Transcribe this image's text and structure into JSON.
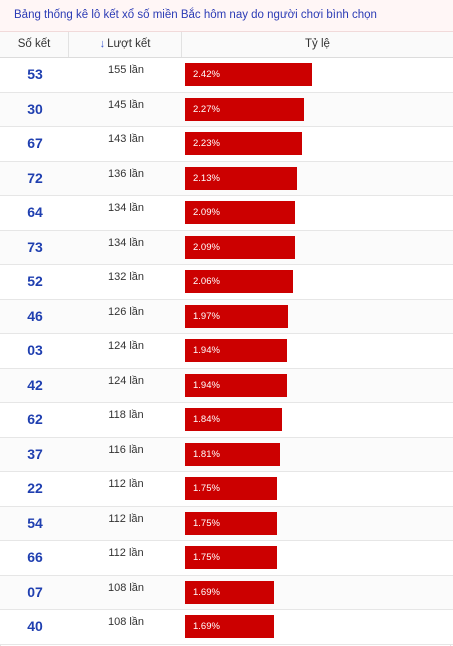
{
  "caption": "Bảng thống kê lô kết xổ số miền Bắc hôm nay do người chơi bình chọn",
  "header": {
    "col_number": "Số kết",
    "col_count": "Lượt kết",
    "col_ratio": "Tỷ lệ",
    "sort_icon": "arrow-down-icon"
  },
  "colors": {
    "accent_blue": "#1f3fb0",
    "bar_red": "#cc0000"
  },
  "rows": [
    {
      "number": "53",
      "count": "155 lần",
      "ratio": "2.42%",
      "value": 2.42
    },
    {
      "number": "30",
      "count": "145 lần",
      "ratio": "2.27%",
      "value": 2.27
    },
    {
      "number": "67",
      "count": "143 lần",
      "ratio": "2.23%",
      "value": 2.23
    },
    {
      "number": "72",
      "count": "136 lần",
      "ratio": "2.13%",
      "value": 2.13
    },
    {
      "number": "64",
      "count": "134 lần",
      "ratio": "2.09%",
      "value": 2.09
    },
    {
      "number": "73",
      "count": "134 lần",
      "ratio": "2.09%",
      "value": 2.09
    },
    {
      "number": "52",
      "count": "132 lần",
      "ratio": "2.06%",
      "value": 2.06
    },
    {
      "number": "46",
      "count": "126 lần",
      "ratio": "1.97%",
      "value": 1.97
    },
    {
      "number": "03",
      "count": "124 lần",
      "ratio": "1.94%",
      "value": 1.94
    },
    {
      "number": "42",
      "count": "124 lần",
      "ratio": "1.94%",
      "value": 1.94
    },
    {
      "number": "62",
      "count": "118 lần",
      "ratio": "1.84%",
      "value": 1.84
    },
    {
      "number": "37",
      "count": "116 lần",
      "ratio": "1.81%",
      "value": 1.81
    },
    {
      "number": "22",
      "count": "112 lần",
      "ratio": "1.75%",
      "value": 1.75
    },
    {
      "number": "54",
      "count": "112 lần",
      "ratio": "1.75%",
      "value": 1.75
    },
    {
      "number": "66",
      "count": "112 lần",
      "ratio": "1.75%",
      "value": 1.75
    },
    {
      "number": "07",
      "count": "108 lần",
      "ratio": "1.69%",
      "value": 1.69
    },
    {
      "number": "40",
      "count": "108 lần",
      "ratio": "1.69%",
      "value": 1.69
    }
  ]
}
